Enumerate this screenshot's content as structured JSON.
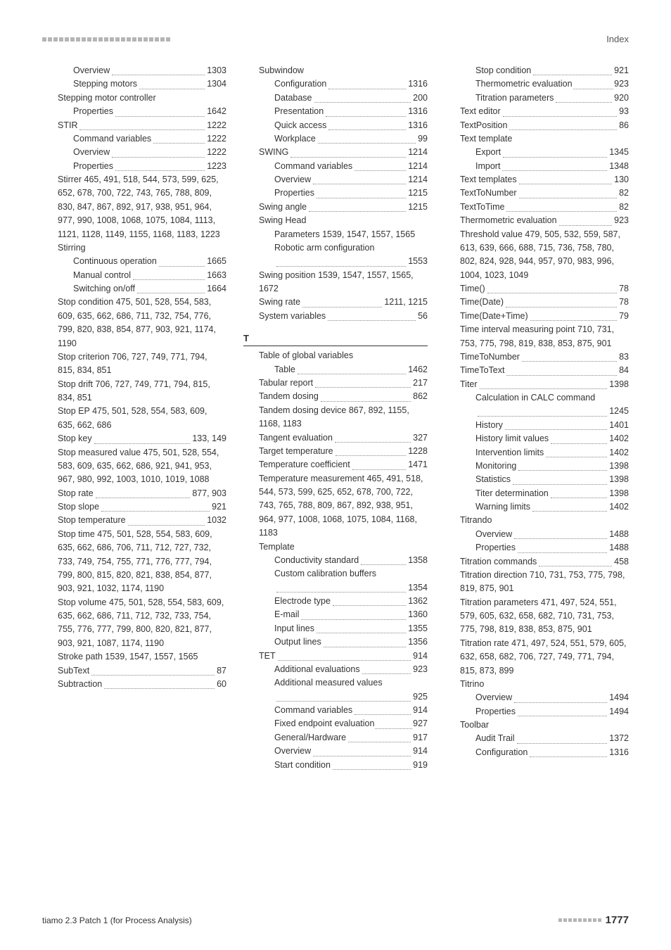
{
  "header": {
    "index_label": "Index"
  },
  "footer": {
    "left": "tiamo 2.3 Patch 1 (for Process Analysis)",
    "page": "1777"
  },
  "col1": [
    {
      "t": "Overview",
      "p": "1303",
      "ind": 2
    },
    {
      "t": "Stepping motors",
      "p": "1304",
      "ind": 2
    },
    {
      "t": "Stepping motor controller",
      "ind": 1,
      "nodots": true
    },
    {
      "t": "Properties",
      "p": "1642",
      "ind": 2
    },
    {
      "t": "STIR",
      "p": "1222",
      "ind": 1
    },
    {
      "t": "Command variables",
      "p": "1222",
      "ind": 2
    },
    {
      "t": "Overview",
      "p": "1222",
      "ind": 2
    },
    {
      "t": "Properties",
      "p": "1223",
      "ind": 2
    },
    {
      "raw": "Stirrer  465, 491, 518, 544, 573, 599, 625, 652, 678, 700, 722, 743, 765, 788, 809, 830, 847, 867, 892, 917, 938, 951, 964, 977, 990, 1008, 1068, 1075, 1084, 1113, 1121, 1128, 1149, 1155, 1168, 1183, 1223",
      "ind": 1
    },
    {
      "t": "Stirring",
      "ind": 1,
      "nodots": true
    },
    {
      "t": "Continuous operation",
      "p": "1665",
      "ind": 2
    },
    {
      "t": "Manual control",
      "p": "1663",
      "ind": 2
    },
    {
      "t": "Switching on/off",
      "p": "1664",
      "ind": 2
    },
    {
      "raw": "Stop condition  475, 501, 528, 554, 583, 609, 635, 662, 686, 711, 732, 754, 776, 799, 820, 838, 854, 877, 903, 921, 1174, 1190",
      "ind": 1
    },
    {
      "raw": "Stop criterion  706, 727, 749, 771, 794, 815, 834, 851",
      "ind": 1
    },
    {
      "raw": "Stop drift  706, 727, 749, 771, 794, 815, 834, 851",
      "ind": 1
    },
    {
      "raw": "Stop EP  475, 501, 528, 554, 583, 609, 635, 662, 686",
      "ind": 1
    },
    {
      "t": "Stop key",
      "p": "133, 149",
      "ind": 1
    },
    {
      "raw": "Stop measured value  475, 501, 528, 554, 583, 609, 635, 662, 686, 921, 941, 953, 967, 980, 992, 1003, 1010, 1019, 1088",
      "ind": 1
    },
    {
      "t": "Stop rate",
      "p": "877, 903",
      "ind": 1
    },
    {
      "t": "Stop slope",
      "p": "921",
      "ind": 1
    },
    {
      "t": "Stop temperature",
      "p": "1032",
      "ind": 1
    },
    {
      "raw": "Stop time  475, 501, 528, 554, 583, 609, 635, 662, 686, 706, 711, 712, 727, 732, 733, 749, 754, 755, 771, 776, 777, 794, 799, 800, 815, 820, 821, 838, 854, 877, 903, 921, 1032, 1174, 1190",
      "ind": 1
    },
    {
      "raw": "Stop volume  475, 501, 528, 554, 583, 609, 635, 662, 686, 711, 712, 732, 733, 754, 755, 776, 777, 799, 800, 820, 821, 877, 903, 921, 1087, 1174, 1190",
      "ind": 1
    },
    {
      "raw": "Stroke path  1539, 1547, 1557, 1565",
      "ind": 1
    },
    {
      "t": "SubText",
      "p": "87",
      "ind": 1
    },
    {
      "t": "Subtraction",
      "p": "60",
      "ind": 1
    }
  ],
  "col2": [
    {
      "t": "Subwindow",
      "ind": 1,
      "nodots": true
    },
    {
      "t": "Configuration",
      "p": "1316",
      "ind": 2
    },
    {
      "t": "Database",
      "p": "200",
      "ind": 2
    },
    {
      "t": "Presentation",
      "p": "1316",
      "ind": 2
    },
    {
      "t": "Quick access",
      "p": "1316",
      "ind": 2
    },
    {
      "t": "Workplace",
      "p": "99",
      "ind": 2
    },
    {
      "t": "SWING",
      "p": "1214",
      "ind": 1
    },
    {
      "t": "Command variables",
      "p": "1214",
      "ind": 2
    },
    {
      "t": "Overview",
      "p": "1214",
      "ind": 2
    },
    {
      "t": "Properties",
      "p": "1215",
      "ind": 2
    },
    {
      "t": "Swing angle",
      "p": "1215",
      "ind": 1
    },
    {
      "t": "Swing Head",
      "ind": 1,
      "nodots": true
    },
    {
      "raw": "Parameters  1539, 1547, 1557, 1565",
      "ind": 2
    },
    {
      "raw": "Robotic arm configuration",
      "ind": 2
    },
    {
      "t": "",
      "p": "1553",
      "ind": 2
    },
    {
      "raw": "Swing position  1539, 1547, 1557, 1565, 1672",
      "ind": 1
    },
    {
      "t": "Swing rate",
      "p": "1211, 1215",
      "ind": 1
    },
    {
      "t": "System variables",
      "p": "56",
      "ind": 1
    },
    {
      "section": "T"
    },
    {
      "t": "Table of global variables",
      "ind": 1,
      "nodots": true
    },
    {
      "t": "Table",
      "p": "1462",
      "ind": 2
    },
    {
      "t": "Tabular report",
      "p": "217",
      "ind": 1
    },
    {
      "t": "Tandem dosing",
      "p": "862",
      "ind": 1
    },
    {
      "raw": "Tandem dosing device  867, 892, 1155, 1168, 1183",
      "ind": 1
    },
    {
      "t": "Tangent evaluation",
      "p": "327",
      "ind": 1
    },
    {
      "t": "Target temperature",
      "p": "1228",
      "ind": 1
    },
    {
      "t": "Temperature coefficient",
      "p": "1471",
      "ind": 1
    },
    {
      "raw": "Temperature measurement  465, 491, 518, 544, 573, 599, 625, 652, 678, 700, 722, 743, 765, 788, 809, 867, 892, 938, 951, 964, 977, 1008, 1068, 1075, 1084, 1168, 1183",
      "ind": 1
    },
    {
      "t": "Template",
      "ind": 1,
      "nodots": true
    },
    {
      "t": "Conductivity standard",
      "p": "1358",
      "ind": 2
    },
    {
      "raw": "Custom calibration buffers",
      "ind": 2
    },
    {
      "t": "",
      "p": "1354",
      "ind": 2
    },
    {
      "t": "Electrode type",
      "p": "1362",
      "ind": 2
    },
    {
      "t": "E-mail",
      "p": "1360",
      "ind": 2
    },
    {
      "t": "Input lines",
      "p": "1355",
      "ind": 2
    },
    {
      "t": "Output lines",
      "p": "1356",
      "ind": 2
    },
    {
      "t": "TET",
      "p": "914",
      "ind": 1
    },
    {
      "t": "Additional evaluations",
      "p": "923",
      "ind": 2
    },
    {
      "raw": "Additional measured values",
      "ind": 2
    },
    {
      "t": "",
      "p": "925",
      "ind": 2
    },
    {
      "t": "Command variables",
      "p": "914",
      "ind": 2
    },
    {
      "t": "Fixed endpoint evaluation",
      "p": "927",
      "ind": 2,
      "tight": true
    },
    {
      "t": "General/Hardware",
      "p": "917",
      "ind": 2
    },
    {
      "t": "Overview",
      "p": "914",
      "ind": 2
    },
    {
      "t": "Start condition",
      "p": "919",
      "ind": 2
    }
  ],
  "col3": [
    {
      "t": "Stop condition",
      "p": "921",
      "ind": 2
    },
    {
      "t": "Thermometric evaluation",
      "p": "923",
      "ind": 2,
      "tight": true
    },
    {
      "t": "Titration parameters",
      "p": "920",
      "ind": 2
    },
    {
      "t": "Text editor",
      "p": "93",
      "ind": 1
    },
    {
      "t": "TextPosition",
      "p": "86",
      "ind": 1
    },
    {
      "t": "Text template",
      "ind": 1,
      "nodots": true
    },
    {
      "t": "Export",
      "p": "1345",
      "ind": 2
    },
    {
      "t": "Import",
      "p": "1348",
      "ind": 2
    },
    {
      "t": "Text templates",
      "p": "130",
      "ind": 1
    },
    {
      "t": "TextToNumber",
      "p": "82",
      "ind": 1
    },
    {
      "t": "TextToTime",
      "p": "82",
      "ind": 1
    },
    {
      "t": "Thermometric evaluation",
      "p": "923",
      "ind": 1
    },
    {
      "raw": "Threshold value  479, 505, 532, 559, 587, 613, 639, 666, 688, 715, 736, 758, 780, 802, 824, 928, 944, 957, 970, 983, 996, 1004, 1023, 1049",
      "ind": 1
    },
    {
      "t": "Time()",
      "p": "78",
      "ind": 1
    },
    {
      "t": "Time(Date)",
      "p": "78",
      "ind": 1
    },
    {
      "t": "Time(Date+Time)",
      "p": "79",
      "ind": 1
    },
    {
      "raw": "Time interval measuring point  710, 731, 753, 775, 798, 819, 838, 853, 875, 901",
      "ind": 1
    },
    {
      "t": "TimeToNumber",
      "p": "83",
      "ind": 1
    },
    {
      "t": "TimeToText",
      "p": "84",
      "ind": 1
    },
    {
      "t": "Titer",
      "p": "1398",
      "ind": 1
    },
    {
      "raw": "Calculation in CALC command",
      "ind": 2
    },
    {
      "t": "",
      "p": "1245",
      "ind": 2
    },
    {
      "t": "History",
      "p": "1401",
      "ind": 2
    },
    {
      "t": "History limit values",
      "p": "1402",
      "ind": 2
    },
    {
      "t": "Intervention limits",
      "p": "1402",
      "ind": 2
    },
    {
      "t": "Monitoring",
      "p": "1398",
      "ind": 2
    },
    {
      "t": "Statistics",
      "p": "1398",
      "ind": 2
    },
    {
      "t": "Titer determination",
      "p": "1398",
      "ind": 2
    },
    {
      "t": "Warning limits",
      "p": "1402",
      "ind": 2
    },
    {
      "t": "Titrando",
      "ind": 1,
      "nodots": true
    },
    {
      "t": "Overview",
      "p": "1488",
      "ind": 2
    },
    {
      "t": "Properties",
      "p": "1488",
      "ind": 2
    },
    {
      "t": "Titration commands",
      "p": "458",
      "ind": 1
    },
    {
      "raw": "Titration direction  710, 731, 753, 775, 798, 819, 875, 901",
      "ind": 1
    },
    {
      "raw": "Titration parameters  471, 497, 524, 551, 579, 605, 632, 658, 682, 710, 731, 753, 775, 798, 819, 838, 853, 875, 901",
      "ind": 1
    },
    {
      "raw": "Titration rate  471, 497, 524, 551, 579, 605, 632, 658, 682, 706, 727, 749, 771, 794, 815, 873, 899",
      "ind": 1
    },
    {
      "t": "Titrino",
      "ind": 1,
      "nodots": true
    },
    {
      "t": "Overview",
      "p": "1494",
      "ind": 2
    },
    {
      "t": "Properties",
      "p": "1494",
      "ind": 2
    },
    {
      "t": "Toolbar",
      "ind": 1,
      "nodots": true
    },
    {
      "t": "Audit Trail",
      "p": "1372",
      "ind": 2
    },
    {
      "t": "Configuration",
      "p": "1316",
      "ind": 2
    }
  ]
}
